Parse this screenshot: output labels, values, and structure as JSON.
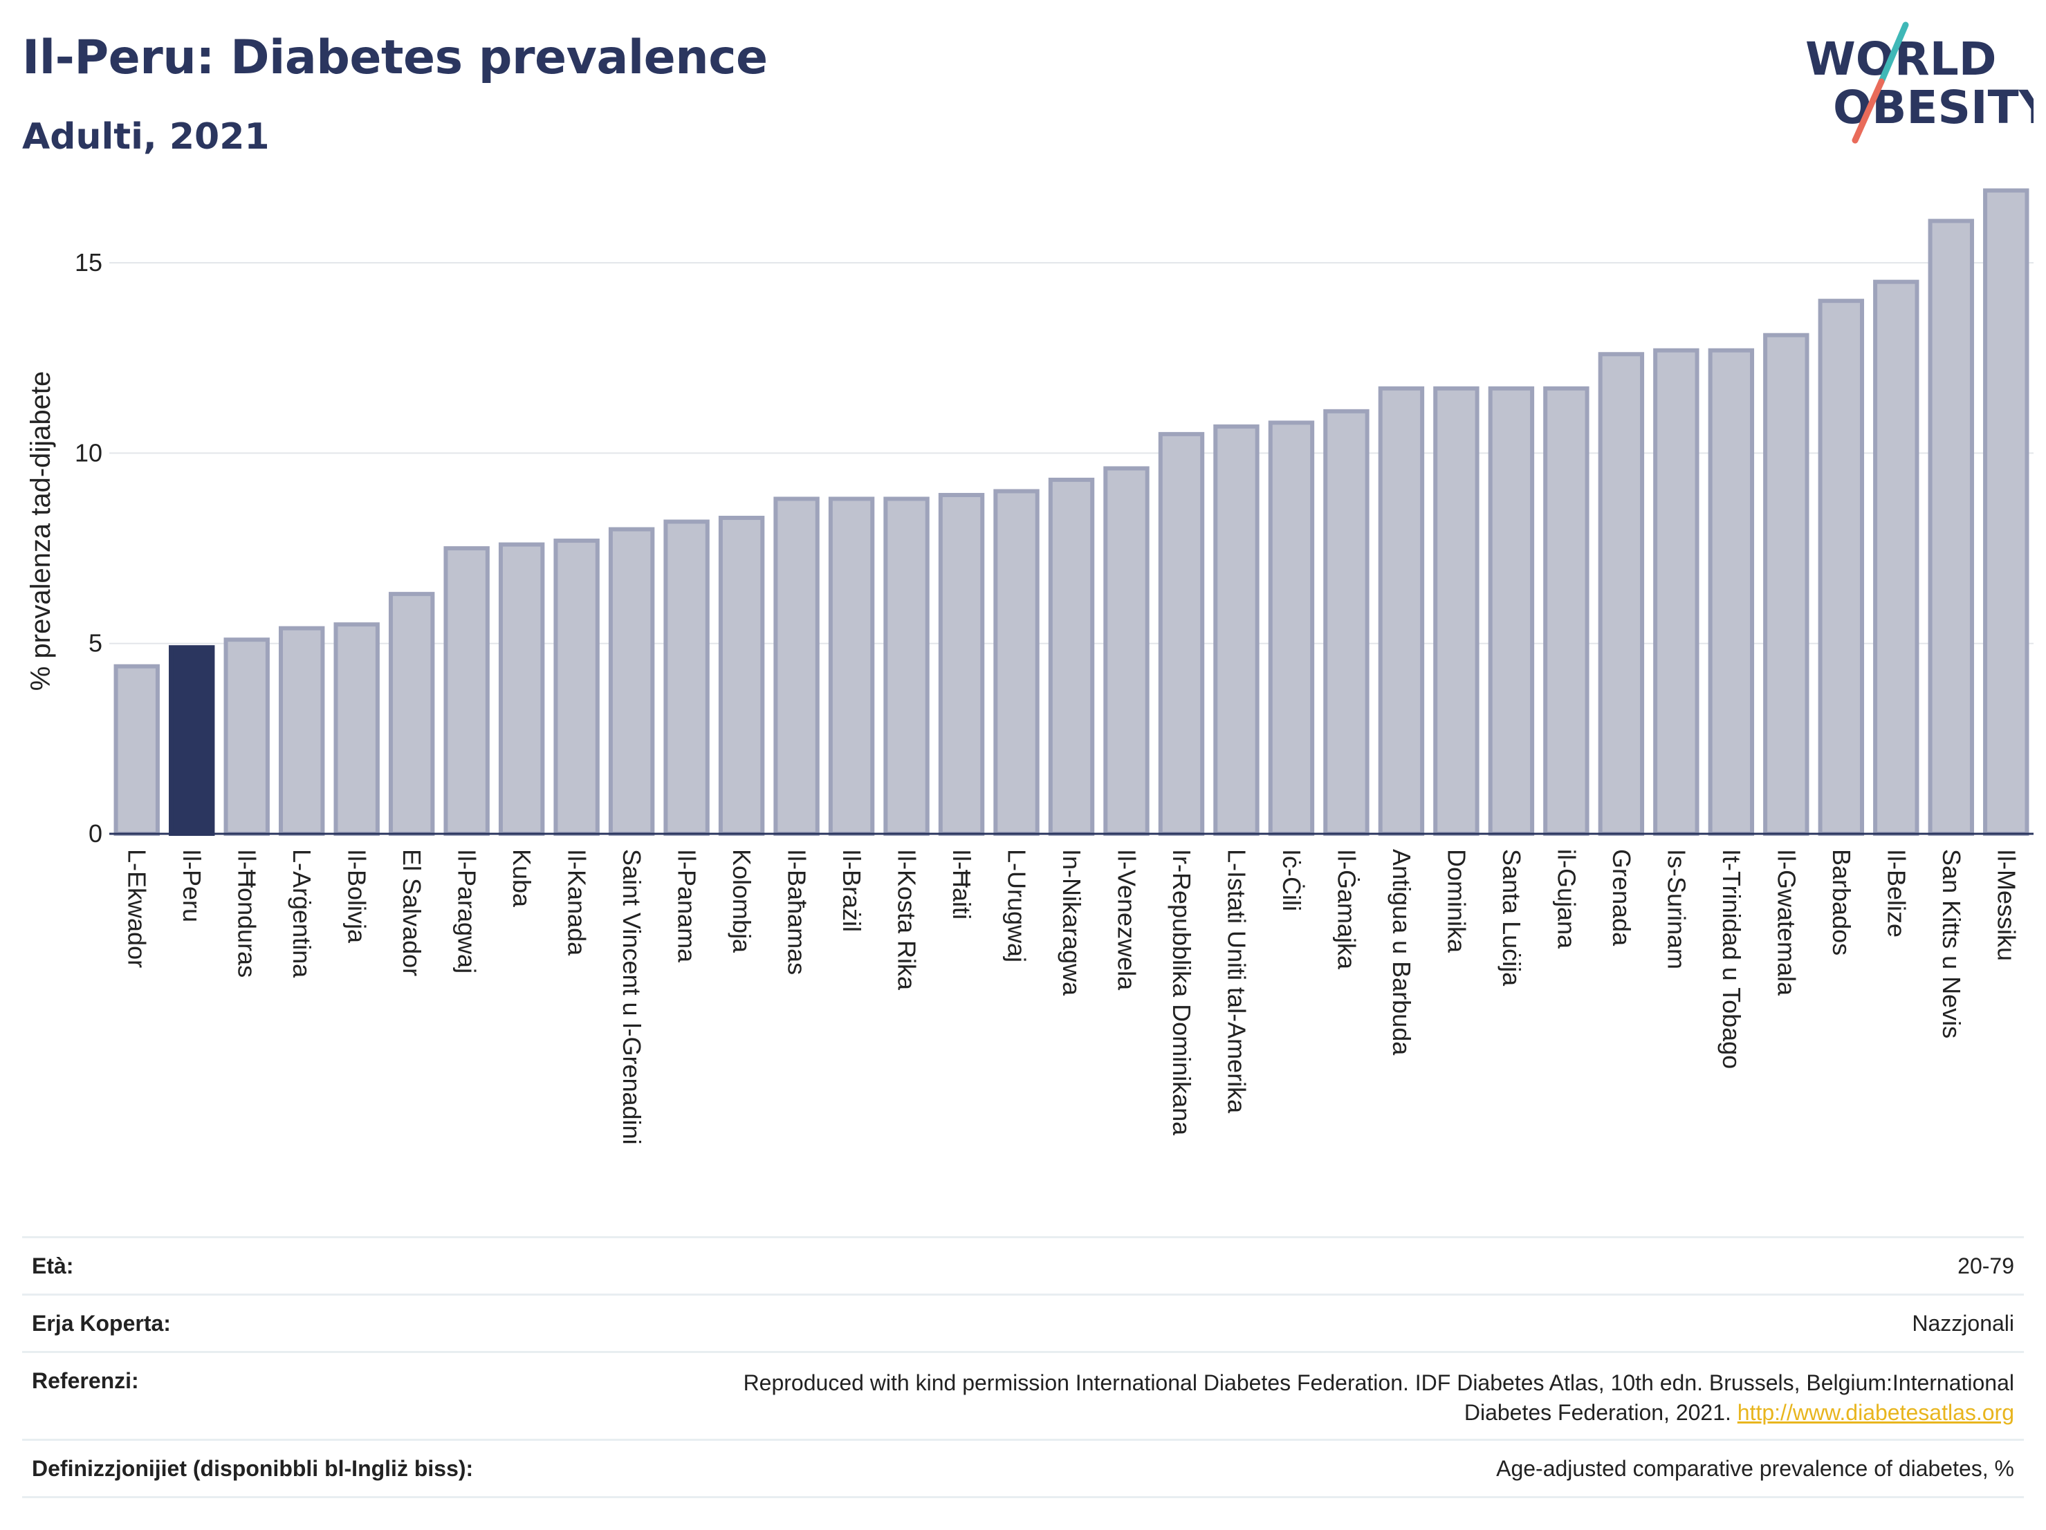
{
  "header": {
    "title": "Il-Peru: Diabetes prevalence",
    "subtitle": "Adulti, 2021"
  },
  "logo": {
    "line1": "WORLD",
    "line2": "OBESITY"
  },
  "colors": {
    "highlight": "#2b365f",
    "bar_fill": "#bfc2cf",
    "bar_stroke": "#9ea3bb",
    "grid": "#e3e6ea",
    "logo_teal": "#3fb8b7",
    "logo_coral": "#e96b5a",
    "link": "#e8b51e"
  },
  "chart_data": {
    "type": "bar",
    "ylabel": "% prevalenza tad-dijabete",
    "xlabel": "",
    "ylim": [
      0,
      17
    ],
    "yticks": [
      0,
      5,
      10,
      15
    ],
    "grid": true,
    "highlight": "Il-Peru",
    "categories": [
      "L-Ekwador",
      "Il-Peru",
      "Il-Ħonduras",
      "L-Arġentina",
      "Il-Bolivja",
      "El Salvador",
      "Il-Paragwaj",
      "Kuba",
      "Il-Kanada",
      "Saint Vincent u l-Grenadini",
      "Il-Panama",
      "Kolombja",
      "Il-Baħamas",
      "Il-Brażil",
      "Il-Kosta Rika",
      "Il-Ħaiti",
      "L-Urugwaj",
      "In-Nikaragwa",
      "Il-Venezwela",
      "Ir-Repubblika Dominikana",
      "L-Istati Uniti tal-Amerika",
      "Iċ-Ċili",
      "Il-Ġamajka",
      "Antigua u Barbuda",
      "Dominika",
      "Santa Luċija",
      "il-Gujana",
      "Grenada",
      "Is-Surinam",
      "It-Trinidad u Tobago",
      "Il-Gwatemala",
      "Barbados",
      "Il-Belize",
      "San Kitts u Nevis",
      "Il-Messiku"
    ],
    "values": [
      4.4,
      4.9,
      5.1,
      5.4,
      5.5,
      6.3,
      7.5,
      7.6,
      7.7,
      8.0,
      8.2,
      8.3,
      8.8,
      8.8,
      8.8,
      8.9,
      9.0,
      9.3,
      9.6,
      10.5,
      10.7,
      10.8,
      11.1,
      11.7,
      11.7,
      11.7,
      11.7,
      12.6,
      12.7,
      12.7,
      13.1,
      14.0,
      14.5,
      16.1,
      16.9
    ]
  },
  "meta": {
    "age_label": "Età:",
    "age_value": "20-79",
    "coverage_label": "Erja Koperta:",
    "coverage_value": "Nazzjonali",
    "references_label": "Referenzi:",
    "references_line1": "Reproduced with kind permission International Diabetes Federation.  IDF Diabetes Atlas, 10th edn. Brussels, Belgium:International",
    "references_line2": "Diabetes Federation, 2021. ",
    "references_link": "http://www.diabetesatlas.org",
    "definitions_label": "Definizzjonijiet (disponibbli bl-Ingliż biss):",
    "definitions_value": "Age-adjusted comparative prevalence of diabetes, %"
  }
}
